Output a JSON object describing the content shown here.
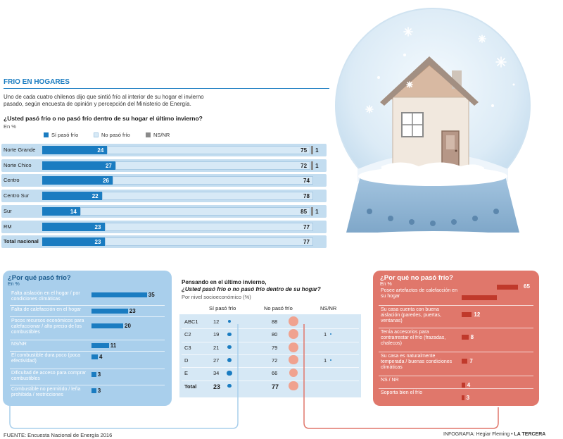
{
  "section_title": "FRIO EN HOGARES",
  "intro": "Uno de cada cuatro chilenos dijo que sintió frío al interior de su hogar el invierno pasado, según encuesta de opinión y percepción del Ministerio de Energía.",
  "main_chart": {
    "question": "¿Usted pasó frío o no pasó frío dentro de su hogar el último invierno?",
    "unit": "En %",
    "legend": [
      "Sí pasó frío",
      "No pasó frío",
      "NS/NR"
    ],
    "colors": {
      "si": "#1a7cc1",
      "no": "#d7e9f6",
      "nsnr": "#8a8a8a"
    }
  },
  "chart_data": [
    {
      "type": "bar",
      "title": "¿Usted pasó frío o no pasó frío dentro de su hogar el último invierno?",
      "unit": "En %",
      "categories": [
        "Norte Grande",
        "Norte Chico",
        "Centro",
        "Centro Sur",
        "Sur",
        "RM",
        "Total nacional"
      ],
      "series": [
        {
          "name": "Sí pasó frío",
          "values": [
            24,
            27,
            26,
            22,
            14,
            23,
            23
          ]
        },
        {
          "name": "No pasó frío",
          "values": [
            75,
            72,
            74,
            78,
            85,
            77,
            77
          ]
        },
        {
          "name": "NS/NR",
          "values": [
            1,
            1,
            null,
            null,
            1,
            null,
            null
          ]
        }
      ]
    },
    {
      "type": "bar",
      "title": "¿Por qué pasó frío?",
      "unit": "En %",
      "categories": [
        "Falta aislación en el hogar / por condiciones climáticas",
        "Falta de calefacción en el hogar",
        "Pocos recursos económicos para calefaccionar / alto precio de los combustibles",
        "NS/NR",
        "El combustible dura poco (poca efectividad)",
        "Dificultad de acceso para comprar combustibles",
        "Combustible no permitido / leña prohibida / restricciones"
      ],
      "values": [
        35,
        23,
        20,
        11,
        4,
        3,
        3
      ]
    },
    {
      "type": "table",
      "title": "Pensando en el último invierno, ¿Usted pasó frío o no pasó frío dentro de su hogar?",
      "unit": "Por nivel socioeconómico (%)",
      "columns": [
        "Sí pasó frío",
        "No pasó frío",
        "NS/NR"
      ],
      "rows": [
        {
          "label": "ABC1",
          "si": 12,
          "no": 88,
          "nsnr": ""
        },
        {
          "label": "C2",
          "si": 19,
          "no": 80,
          "nsnr": "1"
        },
        {
          "label": "C3",
          "si": 21,
          "no": 79,
          "nsnr": ""
        },
        {
          "label": "D",
          "si": 27,
          "no": 72,
          "nsnr": "1"
        },
        {
          "label": "E",
          "si": 34,
          "no": 66,
          "nsnr": ""
        },
        {
          "label": "Total",
          "si": 23,
          "no": 77,
          "nsnr": ""
        }
      ]
    },
    {
      "type": "bar",
      "title": "¿Por qué no pasó frío?",
      "unit": "En %",
      "categories": [
        "Posee artefactos de calefacción en su hogar",
        "Su casa cuenta con buena aislación (paredes, puertas, ventanas)",
        "Tenía accesorios para contrarrestar el frío (frazadas, chalecos)",
        "Su casa es naturalmente temperada / buenas condiciones climáticas",
        "NS / NR",
        "Soporta bien el frío"
      ],
      "values": [
        65,
        12,
        8,
        7,
        4,
        3
      ]
    }
  ],
  "footer": {
    "source": "FUENTE: Encuesta Nacional de Energía 2016",
    "credit": "INFOGRAFIA: Hegiar Fleming",
    "outlet": "LA TERCERA"
  }
}
